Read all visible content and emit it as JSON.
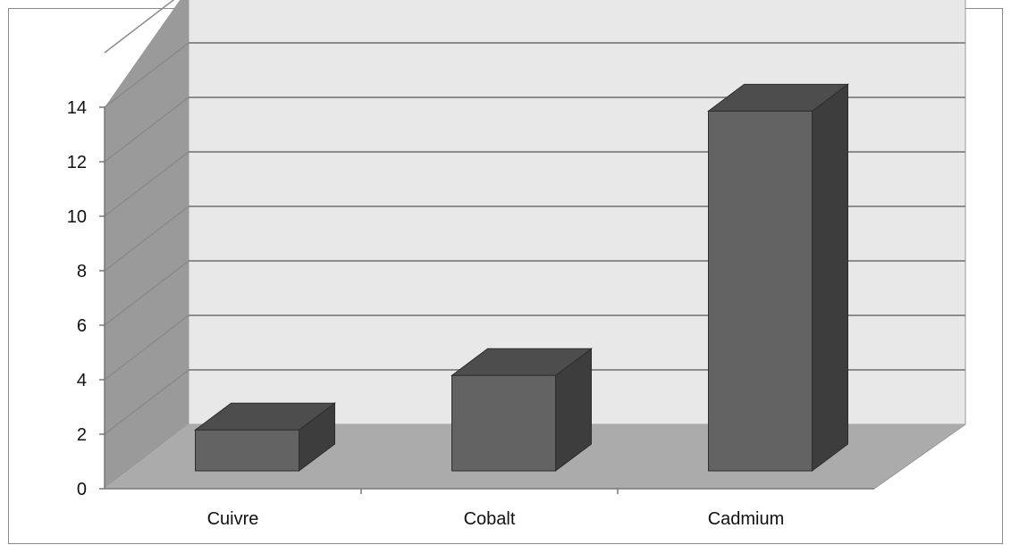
{
  "chart_data": {
    "type": "bar",
    "style": "3d-column",
    "categories": [
      "Cuivre",
      "Cobalt",
      "Cadmium"
    ],
    "values": [
      1.5,
      3.5,
      13.2
    ],
    "yticks": [
      "0",
      "2",
      "4",
      "6",
      "8",
      "10",
      "12",
      "14"
    ],
    "ylim": [
      0,
      14
    ],
    "grid": true,
    "legend": "none",
    "colors": {
      "bar_front": "#636363",
      "bar_top": "#4d4d4d",
      "bar_side": "#3d3d3d",
      "back_wall": "#e8e8e8",
      "side_wall": "#9a9a9a",
      "floor": "#ababab",
      "gridline": "#8c8c8c"
    }
  }
}
